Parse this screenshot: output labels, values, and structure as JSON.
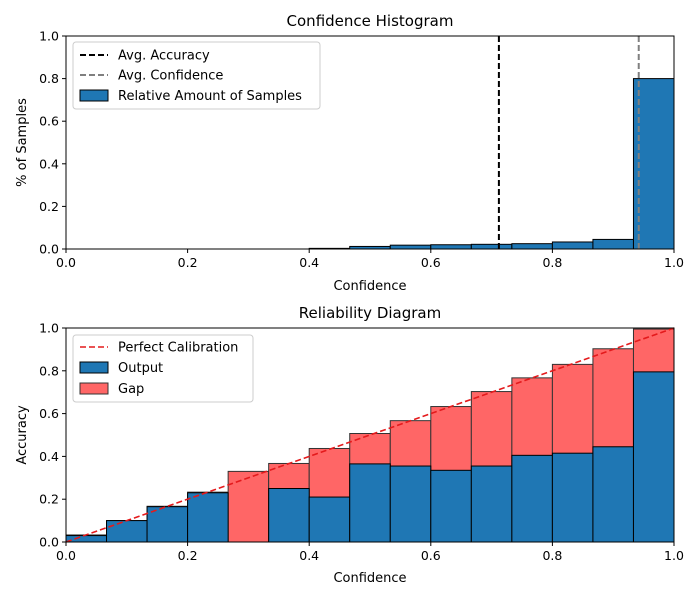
{
  "chart_data": [
    {
      "type": "bar",
      "title": "Confidence Histogram",
      "xlabel": "Confidence",
      "ylabel": "% of Samples",
      "xlim": [
        0,
        1
      ],
      "ylim": [
        0,
        1
      ],
      "xticks": [
        "0.0",
        "0.2",
        "0.4",
        "0.6",
        "0.8",
        "1.0"
      ],
      "yticks": [
        "0.0",
        "0.2",
        "0.4",
        "0.6",
        "0.8",
        "1.0"
      ],
      "bins": 15,
      "colors": {
        "bars": "#1f77b4",
        "edge": "#000000",
        "accuracy_line": "#000000",
        "confidence_line": "#808080"
      },
      "series": [
        {
          "name": "Relative Amount of Samples",
          "values": [
            0,
            0,
            0,
            0,
            0,
            0,
            0.003,
            0.012,
            0.018,
            0.02,
            0.022,
            0.025,
            0.033,
            0.045,
            0.8
          ]
        }
      ],
      "reference_lines": [
        {
          "name": "Avg. Accuracy",
          "x": 0.712,
          "style": "dashed"
        },
        {
          "name": "Avg. Confidence",
          "x": 0.942,
          "style": "dashed"
        }
      ],
      "legend": {
        "position": "top-left",
        "entries": [
          "Avg. Accuracy",
          "Avg. Confidence",
          "Relative Amount of Samples"
        ]
      }
    },
    {
      "type": "bar",
      "title": "Reliability Diagram",
      "xlabel": "Confidence",
      "ylabel": "Accuracy",
      "xlim": [
        0,
        1
      ],
      "ylim": [
        0,
        1
      ],
      "xticks": [
        "0.0",
        "0.2",
        "0.4",
        "0.6",
        "0.8",
        "1.0"
      ],
      "yticks": [
        "0.0",
        "0.2",
        "0.4",
        "0.6",
        "0.8",
        "1.0"
      ],
      "bins": 15,
      "colors": {
        "output": "#1f77b4",
        "gap": "#ff6666",
        "edge": "#000000",
        "perfect": "#e41a1c"
      },
      "series": [
        {
          "name": "Output",
          "values": [
            0.03,
            0.1,
            0.165,
            0.23,
            0.0,
            0.25,
            0.21,
            0.365,
            0.355,
            0.335,
            0.355,
            0.405,
            0.415,
            0.445,
            0.795
          ]
        },
        {
          "name": "Gap",
          "values": [
            0.033,
            0.1,
            0.167,
            0.233,
            0.33,
            0.367,
            0.437,
            0.507,
            0.567,
            0.633,
            0.703,
            0.767,
            0.83,
            0.903,
            0.995
          ]
        }
      ],
      "reference_lines": [
        {
          "name": "Perfect Calibration",
          "from": [
            0,
            0
          ],
          "to": [
            1,
            1
          ],
          "style": "dashed"
        }
      ],
      "legend": {
        "position": "top-left",
        "entries": [
          "Perfect Calibration",
          "Output",
          "Gap"
        ]
      }
    }
  ]
}
